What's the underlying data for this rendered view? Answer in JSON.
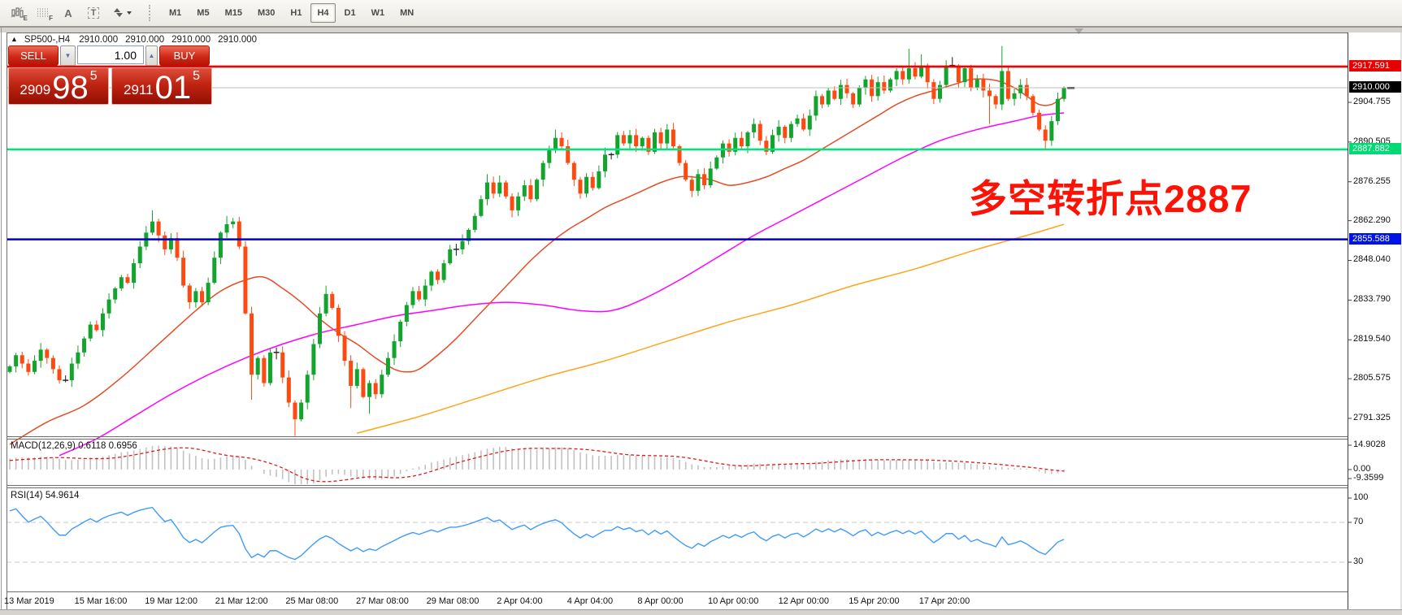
{
  "toolbar": {
    "icons": [
      {
        "name": "pattern-e-icon",
        "letter": "E"
      },
      {
        "name": "grid-f-icon",
        "letter": "F"
      },
      {
        "name": "font-a-icon",
        "letter": "A"
      },
      {
        "name": "text-label-icon",
        "letter": "T"
      },
      {
        "name": "arrow-style-icon",
        "letter": ""
      }
    ],
    "timeframes": [
      {
        "label": "M1"
      },
      {
        "label": "M5"
      },
      {
        "label": "M15"
      },
      {
        "label": "M30"
      },
      {
        "label": "H1"
      },
      {
        "label": "H4",
        "active": true
      },
      {
        "label": "D1"
      },
      {
        "label": "W1"
      },
      {
        "label": "MN"
      }
    ]
  },
  "chart": {
    "symbol_line": {
      "collapse": "▲",
      "title": "SP500-,H4",
      "values": [
        "2910.000",
        "2910.000",
        "2910.000",
        "2910.000"
      ]
    },
    "trade_panel": {
      "sell_label": "SELL",
      "buy_label": "BUY",
      "volume": "1.00",
      "sell_price": {
        "prefix": "2909",
        "big": "98",
        "sup": "5"
      },
      "buy_price": {
        "prefix": "2911",
        "big": "01",
        "sup": "5"
      }
    },
    "annotation": {
      "text": "多空转折点2887",
      "color": "#fd1205"
    }
  },
  "indicators": {
    "macd": {
      "label": "MACD(12,26,9) 0.6118 0.6956",
      "axis_labels": [
        "14.9028",
        "0.00",
        "-9.3599"
      ]
    },
    "rsi": {
      "label": "RSI(14) 54.9614",
      "axis_labels": [
        "100",
        "70",
        "30"
      ]
    }
  },
  "chart_data": {
    "type": "candlestick",
    "symbol": "SP500-",
    "timeframe": "H4",
    "current_price": "2910.000",
    "up_color": "#12a42d",
    "down_color": "#fd4a10",
    "doji_color": "#1a1a1a",
    "closes": [
      2810,
      2814,
      2811,
      2808,
      2812,
      2816,
      2813,
      2809,
      2805,
      2805,
      2811,
      2815,
      2820,
      2825,
      2823,
      2829,
      2834,
      2838,
      2842,
      2840,
      2847,
      2853,
      2858,
      2862,
      2857,
      2852,
      2856,
      2849,
      2839,
      2833,
      2837,
      2833,
      2840,
      2849,
      2858,
      2861,
      2862,
      2853,
      2829,
      2807,
      2813,
      2804,
      2815,
      2815,
      2806,
      2797,
      2791,
      2797,
      2807,
      2818,
      2829,
      2836,
      2831,
      2821,
      2812,
      2803,
      2809,
      2799,
      2804,
      2800,
      2807,
      2813,
      2819,
      2826,
      2832,
      2837,
      2834,
      2839,
      2844,
      2841,
      2847,
      2852,
      2852,
      2855,
      2859,
      2864,
      2870,
      2876,
      2872,
      2876,
      2871,
      2866,
      2871,
      2875,
      2870,
      2877,
      2883,
      2888,
      2892,
      2889,
      2883,
      2877,
      2872,
      2878,
      2874,
      2880,
      2886,
      2886,
      2893,
      2890,
      2893,
      2889,
      2892,
      2887,
      2894,
      2890,
      2895,
      2889,
      2883,
      2877,
      2873,
      2879,
      2875,
      2881,
      2885,
      2890,
      2887,
      2892,
      2889,
      2894,
      2897,
      2891,
      2887,
      2893,
      2896,
      2892,
      2897,
      2899,
      2895,
      2900,
      2907,
      2904,
      2909,
      2906,
      2911,
      2908,
      2904,
      2910,
      2913,
      2907,
      2912,
      2909,
      2913,
      2916,
      2913,
      2917,
      2914,
      2918,
      2912,
      2906,
      2911,
      2918,
      2918,
      2912,
      2917,
      2910,
      2913,
      2909,
      2907,
      2904,
      2916,
      2906,
      2908,
      2911,
      2907,
      2901,
      2895,
      2891,
      2898,
      2906,
      2910
    ],
    "doji_indices": [
      9,
      43,
      72,
      97,
      152
    ],
    "wick_overrides": {
      "23": {
        "high": 2866
      },
      "35": {
        "high": 2864
      },
      "39": {
        "low": 2798
      },
      "46": {
        "low": 2785
      },
      "51": {
        "high": 2839
      },
      "55": {
        "low": 2795
      },
      "58": {
        "low": 2793
      },
      "77": {
        "high": 2879
      },
      "88": {
        "high": 2895
      },
      "120": {
        "high": 2899
      },
      "130": {
        "high": 2909
      },
      "145": {
        "high": 2924
      },
      "147": {
        "high": 2922
      },
      "152": {
        "high": 2921
      },
      "158": {
        "low": 2897
      },
      "160": {
        "high": 2925,
        "low": 2902
      },
      "167": {
        "low": 2888
      }
    },
    "indicator_prehistory": [
      2772,
      2775,
      2774,
      2777,
      2776,
      2779,
      2778,
      2781,
      2780,
      2783,
      2782,
      2785,
      2784,
      2787,
      2786,
      2789,
      2788,
      2791,
      2790,
      2793,
      2792,
      2795,
      2794,
      2797,
      2796,
      2799,
      2798,
      2801,
      2800,
      2806
    ],
    "moving_averages": {
      "fast": {
        "color": "#e44d26",
        "points": [
          [
            0,
            2782
          ],
          [
            6,
            2790
          ],
          [
            12,
            2796
          ],
          [
            18,
            2806
          ],
          [
            24,
            2818
          ],
          [
            30,
            2830
          ],
          [
            34,
            2837
          ],
          [
            38,
            2841
          ],
          [
            41,
            2842
          ],
          [
            44,
            2838
          ],
          [
            47,
            2833
          ],
          [
            50,
            2827
          ],
          [
            53,
            2822
          ],
          [
            56,
            2818
          ],
          [
            59,
            2813
          ],
          [
            62,
            2809
          ],
          [
            64,
            2808
          ],
          [
            66,
            2809
          ],
          [
            69,
            2814
          ],
          [
            72,
            2820
          ],
          [
            75,
            2827
          ],
          [
            78,
            2834
          ],
          [
            81,
            2841
          ],
          [
            84,
            2848
          ],
          [
            87,
            2854
          ],
          [
            90,
            2859
          ],
          [
            93,
            2863
          ],
          [
            96,
            2867
          ],
          [
            99,
            2870
          ],
          [
            102,
            2873
          ],
          [
            105,
            2876
          ],
          [
            108,
            2878
          ],
          [
            110,
            2878
          ],
          [
            113,
            2877
          ],
          [
            116,
            2875
          ],
          [
            119,
            2876
          ],
          [
            122,
            2878
          ],
          [
            125,
            2881
          ],
          [
            128,
            2884
          ],
          [
            131,
            2888
          ],
          [
            134,
            2892
          ],
          [
            137,
            2896
          ],
          [
            140,
            2900
          ],
          [
            143,
            2904
          ],
          [
            146,
            2907
          ],
          [
            149,
            2909
          ],
          [
            152,
            2911
          ],
          [
            155,
            2913
          ],
          [
            158,
            2913
          ],
          [
            160,
            2912
          ],
          [
            162,
            2910
          ],
          [
            164,
            2907
          ],
          [
            166,
            2904
          ],
          [
            168,
            2904
          ],
          [
            170,
            2907
          ]
        ]
      },
      "mid": {
        "color": "#ff00ff",
        "points": [
          [
            8,
            2778
          ],
          [
            14,
            2784
          ],
          [
            20,
            2792
          ],
          [
            26,
            2800
          ],
          [
            32,
            2807
          ],
          [
            38,
            2813
          ],
          [
            44,
            2818
          ],
          [
            50,
            2822
          ],
          [
            56,
            2825
          ],
          [
            62,
            2828
          ],
          [
            68,
            2830
          ],
          [
            74,
            2832
          ],
          [
            80,
            2833
          ],
          [
            86,
            2832
          ],
          [
            92,
            2830
          ],
          [
            97,
            2830
          ],
          [
            102,
            2834
          ],
          [
            108,
            2841
          ],
          [
            114,
            2849
          ],
          [
            120,
            2857
          ],
          [
            126,
            2864
          ],
          [
            132,
            2871
          ],
          [
            138,
            2878
          ],
          [
            144,
            2885
          ],
          [
            150,
            2891
          ],
          [
            156,
            2895
          ],
          [
            162,
            2898
          ],
          [
            166,
            2900
          ],
          [
            170,
            2901
          ]
        ]
      },
      "slow": {
        "color": "#ffa41c",
        "points": [
          [
            56,
            2786
          ],
          [
            66,
            2792
          ],
          [
            76,
            2799
          ],
          [
            86,
            2806
          ],
          [
            96,
            2812
          ],
          [
            106,
            2819
          ],
          [
            116,
            2826
          ],
          [
            126,
            2832
          ],
          [
            136,
            2839
          ],
          [
            146,
            2845
          ],
          [
            156,
            2852
          ],
          [
            164,
            2857
          ],
          [
            170,
            2861
          ]
        ]
      }
    },
    "levels": [
      {
        "label": "2910.000",
        "price": 2910.0,
        "line_color": "#bfbfbf",
        "width": 1,
        "label_bg": "#000000"
      },
      {
        "label": "2855.588",
        "price": 2855.588,
        "line_color": "#0000cd",
        "width": 2.6,
        "label_bg": "#0013e6"
      },
      {
        "label": "2887.882",
        "price": 2887.882,
        "line_color": "#00e57b",
        "width": 2.6,
        "label_bg": "#00d974"
      },
      {
        "label": "2917.591",
        "price": 2917.591,
        "line_color": "#f50000",
        "width": 2.6,
        "label_bg": "#e60000"
      }
    ],
    "y_axis_ticks": [
      "2904.755",
      "2890.505",
      "2876.255",
      "2862.290",
      "2848.040",
      "2833.790",
      "2819.540",
      "2805.575",
      "2791.325"
    ],
    "x_axis_labels": [
      "13 Mar 2019",
      "15 Mar 16:00",
      "19 Mar 12:00",
      "21 Mar 12:00",
      "25 Mar 08:00",
      "27 Mar 08:00",
      "29 Mar 08:00",
      "2 Apr 04:00",
      "4 Apr 04:00",
      "8 Apr 00:00",
      "10 Apr 00:00",
      "12 Apr 00:00",
      "15 Apr 20:00",
      "17 Apr 20:00"
    ],
    "macd": {
      "params": [
        12,
        26,
        9
      ],
      "histogram_color": "#c2c2c2",
      "signal_color": "#e01919",
      "axis": {
        "max": 14.9028,
        "zero": 0.0,
        "min": -9.3599
      }
    },
    "rsi": {
      "period": 14,
      "color": "#3f9bfc",
      "levels": [
        70,
        30
      ]
    }
  }
}
